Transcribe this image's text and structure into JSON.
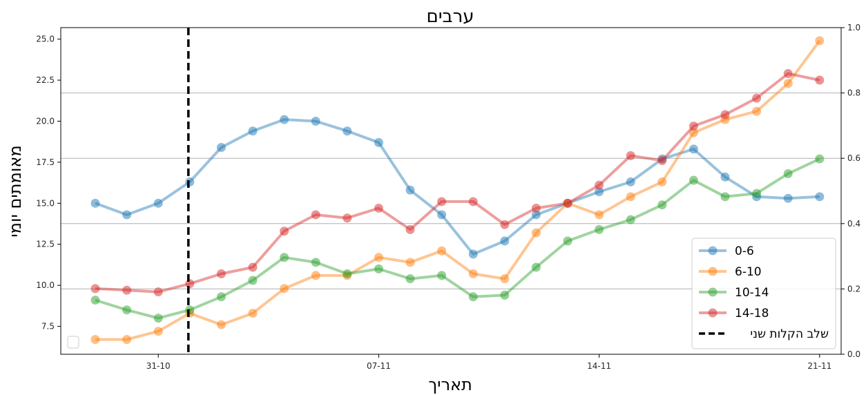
{
  "chart_data": {
    "type": "line",
    "title": "ערבים",
    "xlabel": "תאריך",
    "ylabel": "מאומתים יומי",
    "x": [
      "29-10",
      "30-10",
      "31-10",
      "01-11",
      "02-11",
      "03-11",
      "04-11",
      "05-11",
      "06-11",
      "07-11",
      "08-11",
      "09-11",
      "10-11",
      "11-11",
      "12-11",
      "13-11",
      "14-11",
      "15-11",
      "16-11",
      "17-11",
      "18-11",
      "19-11",
      "20-11",
      "21-11"
    ],
    "xticks": [
      "31-10",
      "07-11",
      "14-11",
      "21-11"
    ],
    "ylim": [
      5.8,
      25.7
    ],
    "yticks": [
      "7.5",
      "10.0",
      "12.5",
      "15.0",
      "17.5",
      "20.0",
      "22.5",
      "25.0"
    ],
    "y2lim": [
      0.0,
      1.0
    ],
    "y2ticks": [
      "0.0",
      "0.2",
      "0.4",
      "0.6",
      "0.8",
      "1.0"
    ],
    "grid": "horizontal lines on secondary axis",
    "legend_position": "lower-right",
    "series": [
      {
        "name": "0-6",
        "color": "#1f77b4",
        "values": [
          15.0,
          14.3,
          15.0,
          16.3,
          18.4,
          19.4,
          20.1,
          20.0,
          19.4,
          18.7,
          15.8,
          14.3,
          11.9,
          12.7,
          14.3,
          15.0,
          15.7,
          16.3,
          17.7,
          18.3,
          16.6,
          15.4,
          15.3,
          15.4
        ]
      },
      {
        "name": "6-10",
        "color": "#ff7f0e",
        "values": [
          6.7,
          6.7,
          7.2,
          8.3,
          7.6,
          8.3,
          9.8,
          10.6,
          10.6,
          11.7,
          11.4,
          12.1,
          10.7,
          10.4,
          13.2,
          15.0,
          14.3,
          15.4,
          16.3,
          19.3,
          20.1,
          20.6,
          22.3,
          24.9
        ]
      },
      {
        "name": "10-14",
        "color": "#2ca02c",
        "values": [
          9.1,
          8.5,
          8.0,
          8.5,
          9.3,
          10.3,
          11.7,
          11.4,
          10.7,
          11.0,
          10.4,
          10.6,
          9.3,
          9.4,
          11.1,
          12.7,
          13.4,
          14.0,
          14.9,
          16.4,
          15.4,
          15.6,
          16.8,
          17.7
        ]
      },
      {
        "name": "14-18",
        "color": "#d62728",
        "values": [
          9.8,
          9.7,
          9.6,
          10.1,
          10.7,
          11.1,
          13.3,
          14.3,
          14.1,
          14.7,
          13.4,
          15.1,
          15.1,
          13.7,
          14.7,
          15.0,
          16.1,
          17.9,
          17.6,
          19.7,
          20.4,
          21.4,
          22.9,
          22.5
        ]
      }
    ],
    "vline": {
      "x_index": 3,
      "label": "שלב הקלות שני",
      "style": "dashed",
      "color": "#000000"
    }
  }
}
